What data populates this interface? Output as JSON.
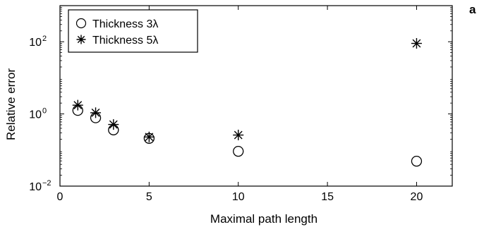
{
  "panel_label": "a",
  "chart_data": {
    "type": "scatter",
    "title": "",
    "xlabel": "Maximal path length",
    "ylabel": "Relative error",
    "xlim": [
      0,
      22
    ],
    "ylim": [
      0.01,
      1000
    ],
    "yscale": "log",
    "x_ticks": [
      0,
      5,
      10,
      15,
      20
    ],
    "x_tick_labels": [
      "0",
      "5",
      "10",
      "15",
      "20"
    ],
    "y_ticks": [
      0.01,
      1,
      100
    ],
    "y_tick_labels": [
      {
        "base": "10",
        "exp": "−2"
      },
      {
        "base": "10",
        "exp": "0"
      },
      {
        "base": "10",
        "exp": "2"
      }
    ],
    "grid": false,
    "legend_position": "top-left",
    "series": [
      {
        "name": "Thickness 3λ",
        "marker": "circle",
        "color": "#000000",
        "points": [
          [
            1,
            1.25
          ],
          [
            2,
            0.78
          ],
          [
            3,
            0.36
          ],
          [
            5,
            0.21
          ],
          [
            10,
            0.092
          ],
          [
            20,
            0.049
          ]
        ]
      },
      {
        "name": "Thickness 5λ",
        "marker": "asterisk",
        "color": "#000000",
        "points": [
          [
            1,
            1.75
          ],
          [
            2,
            1.08
          ],
          [
            3,
            0.51
          ],
          [
            5,
            0.23
          ],
          [
            10,
            0.26
          ],
          [
            20,
            90
          ]
        ]
      }
    ]
  }
}
